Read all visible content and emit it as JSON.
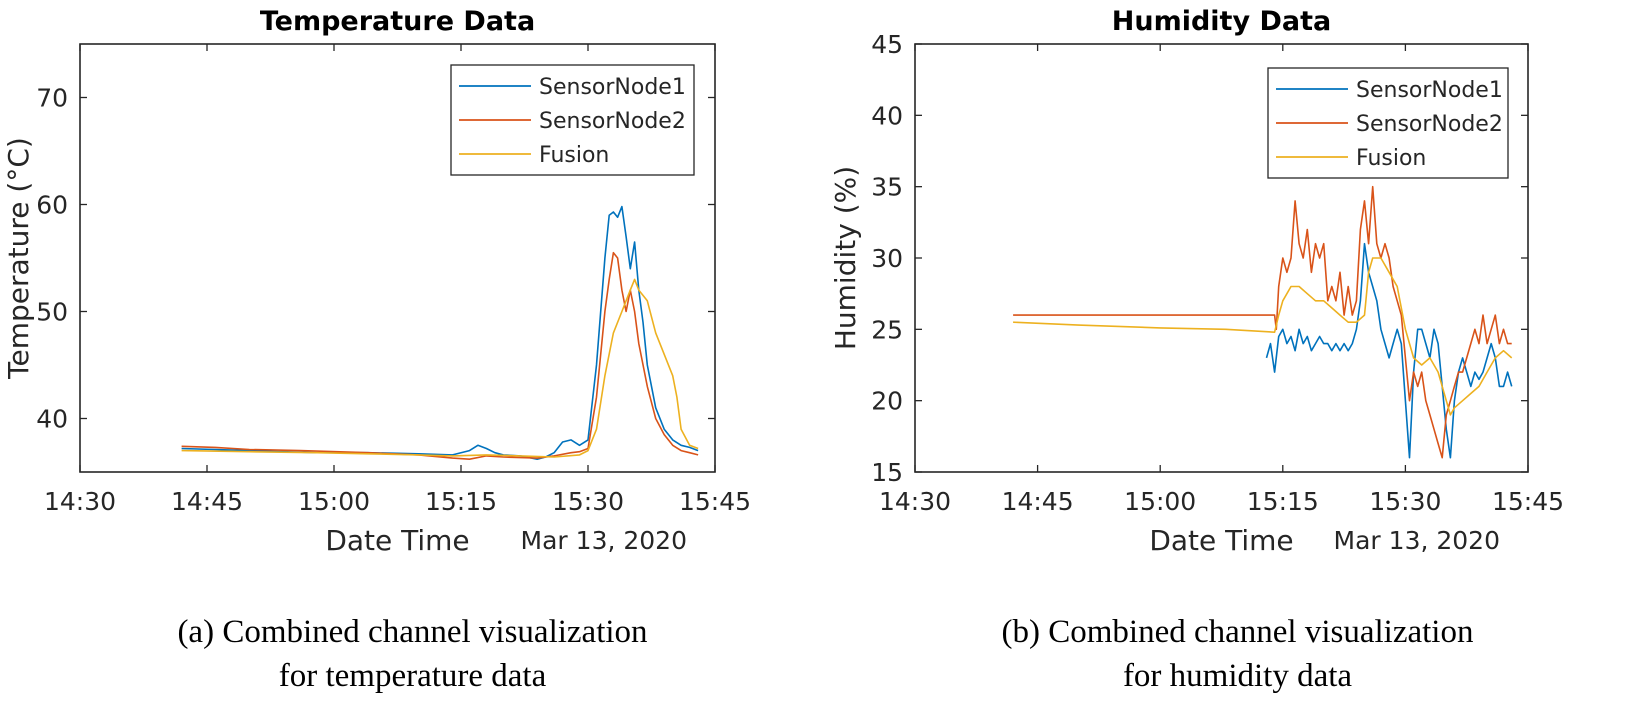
{
  "chart_data": [
    {
      "type": "line",
      "title": "Temperature Data",
      "xlabel": "Date Time",
      "ylabel": "Temperature (°C)",
      "date_label": "Mar 13, 2020",
      "x_unit": "minutes from 14:30",
      "xlim": [
        0,
        75
      ],
      "ylim": [
        35,
        75
      ],
      "xticks": [
        0,
        15,
        30,
        45,
        60,
        75
      ],
      "xtick_labels": [
        "14:30",
        "14:45",
        "15:00",
        "15:15",
        "15:30",
        "15:45"
      ],
      "yticks": [
        40,
        50,
        60,
        70
      ],
      "ytick_labels": [
        "40",
        "50",
        "60",
        "70"
      ],
      "legend": [
        "SensorNode1",
        "SensorNode2",
        "Fusion"
      ],
      "legend_position": "top-right",
      "colors": [
        "#0072BD",
        "#D95319",
        "#EDB120"
      ],
      "series": [
        {
          "name": "SensorNode1",
          "color": "#0072BD",
          "x": [
            12,
            20,
            28,
            34,
            40,
            44,
            46,
            47,
            48,
            49,
            50,
            52,
            54,
            55,
            56,
            57,
            58,
            59,
            60,
            61,
            62,
            62.5,
            63,
            63.5,
            64,
            64.5,
            65,
            65.5,
            66,
            66.5,
            67,
            68,
            69,
            70,
            71,
            72,
            73
          ],
          "y": [
            37.2,
            37.0,
            36.8,
            36.8,
            36.7,
            36.6,
            37.0,
            37.5,
            37.2,
            36.8,
            36.6,
            36.5,
            36.2,
            36.4,
            36.8,
            37.8,
            38.0,
            37.5,
            38.0,
            45.0,
            55.0,
            59.0,
            59.3,
            58.8,
            59.8,
            57.0,
            54.0,
            56.5,
            52.0,
            49.0,
            45.0,
            41.0,
            39.0,
            38.0,
            37.5,
            37.3,
            37.0
          ]
        },
        {
          "name": "SensorNode2",
          "color": "#D95319",
          "x": [
            12,
            16,
            20,
            26,
            34,
            40,
            44,
            46,
            48,
            50,
            54,
            56,
            58,
            59,
            60,
            61,
            61.5,
            62,
            62.5,
            63,
            63.5,
            64,
            64.5,
            65,
            65.5,
            66,
            67,
            68,
            69,
            70,
            71,
            72,
            73
          ],
          "y": [
            37.4,
            37.3,
            37.1,
            37.0,
            36.8,
            36.6,
            36.3,
            36.2,
            36.5,
            36.4,
            36.3,
            36.5,
            36.8,
            36.9,
            37.2,
            42.0,
            46.0,
            50.0,
            53.0,
            55.5,
            55.0,
            52.0,
            50.0,
            52.0,
            50.0,
            47.0,
            43.0,
            40.0,
            38.5,
            37.5,
            37.0,
            36.8,
            36.6
          ]
        },
        {
          "name": "Fusion",
          "color": "#EDB120",
          "x": [
            12,
            20,
            28,
            34,
            40,
            44,
            48,
            52,
            56,
            59,
            60,
            61,
            62,
            63,
            64,
            65,
            65.5,
            66,
            67,
            68,
            69,
            70,
            70.5,
            71,
            72,
            73
          ],
          "y": [
            37.0,
            36.9,
            36.8,
            36.7,
            36.6,
            36.5,
            36.6,
            36.5,
            36.4,
            36.6,
            37.0,
            39.0,
            44.0,
            48.0,
            50.0,
            52.0,
            53.0,
            52.0,
            51.0,
            48.0,
            46.0,
            44.0,
            42.0,
            39.0,
            37.5,
            37.2
          ]
        }
      ]
    },
    {
      "type": "line",
      "title": "Humidity Data",
      "xlabel": "Date Time",
      "ylabel": "Humidity (%)",
      "date_label": "Mar 13, 2020",
      "x_unit": "minutes from 14:30",
      "xlim": [
        0,
        75
      ],
      "ylim": [
        15,
        45
      ],
      "xticks": [
        0,
        15,
        30,
        45,
        60,
        75
      ],
      "xtick_labels": [
        "14:30",
        "14:45",
        "15:00",
        "15:15",
        "15:30",
        "15:45"
      ],
      "yticks": [
        15,
        20,
        25,
        30,
        35,
        40,
        45
      ],
      "ytick_labels": [
        "15",
        "20",
        "25",
        "30",
        "35",
        "40",
        "45"
      ],
      "legend": [
        "SensorNode1",
        "SensorNode2",
        "Fusion"
      ],
      "legend_position": "top-right",
      "colors": [
        "#0072BD",
        "#D95319",
        "#EDB120"
      ],
      "series": [
        {
          "name": "SensorNode1",
          "color": "#0072BD",
          "x": [
            43,
            43.5,
            44,
            44.5,
            45,
            45.5,
            46,
            46.5,
            47,
            47.5,
            48,
            48.5,
            49,
            49.5,
            50,
            50.5,
            51,
            51.5,
            52,
            52.5,
            53,
            53.5,
            54,
            54.5,
            55,
            55.5,
            56,
            56.5,
            57,
            57.5,
            58,
            58.5,
            59,
            59.5,
            60,
            60.5,
            61,
            61.5,
            62,
            62.5,
            63,
            63.5,
            64,
            64.5,
            65,
            65.5,
            66,
            66.5,
            67,
            67.5,
            68,
            68.5,
            69,
            69.5,
            70,
            70.5,
            71,
            71.5,
            72,
            72.5,
            73
          ],
          "y": [
            23.0,
            24.0,
            22.0,
            24.5,
            25.0,
            24.0,
            24.5,
            23.5,
            25.0,
            24.0,
            24.5,
            23.5,
            24.0,
            24.5,
            24.0,
            24.0,
            23.5,
            24.0,
            23.5,
            24.0,
            23.5,
            24.0,
            25.0,
            27.0,
            31.0,
            29.0,
            28.0,
            27.0,
            25.0,
            24.0,
            23.0,
            24.0,
            25.0,
            24.0,
            20.0,
            16.0,
            22.0,
            25.0,
            25.0,
            24.0,
            23.0,
            25.0,
            24.0,
            21.0,
            18.0,
            16.0,
            20.0,
            22.0,
            23.0,
            22.0,
            21.0,
            22.0,
            21.5,
            22.0,
            23.0,
            24.0,
            23.0,
            21.0,
            21.0,
            22.0,
            21.0
          ]
        },
        {
          "name": "SensorNode2",
          "color": "#D95319",
          "x": [
            12,
            20,
            30,
            38,
            44,
            44.2,
            44.5,
            45,
            45.5,
            46,
            46.5,
            47,
            47.5,
            48,
            48.5,
            49,
            49.5,
            50,
            50.5,
            51,
            51.5,
            52,
            52.5,
            53,
            53.5,
            54,
            54.5,
            55,
            55.5,
            56,
            56.5,
            57,
            57.5,
            58,
            58.5,
            59,
            59.5,
            60,
            60.5,
            61,
            61.5,
            62,
            62.5,
            63,
            63.5,
            64,
            64.5,
            65,
            65.5,
            66,
            66.5,
            67,
            67.5,
            68,
            68.5,
            69,
            69.5,
            70,
            70.5,
            71,
            71.5,
            72,
            72.5,
            73
          ],
          "y": [
            26.0,
            26.0,
            26.0,
            26.0,
            26.0,
            25.0,
            28.0,
            30.0,
            29.0,
            30.0,
            34.0,
            31.0,
            30.0,
            32.0,
            29.0,
            31.0,
            30.0,
            31.0,
            27.0,
            28.0,
            27.0,
            29.0,
            26.0,
            28.0,
            26.0,
            27.0,
            32.0,
            34.0,
            31.0,
            35.0,
            31.0,
            30.0,
            31.0,
            30.0,
            28.0,
            27.0,
            26.0,
            23.0,
            20.0,
            22.0,
            21.0,
            22.0,
            20.0,
            19.0,
            18.0,
            17.0,
            16.0,
            19.0,
            20.0,
            21.0,
            22.0,
            22.0,
            23.0,
            24.0,
            25.0,
            24.0,
            26.0,
            24.0,
            25.0,
            26.0,
            24.0,
            25.0,
            24.0,
            24.0
          ]
        },
        {
          "name": "Fusion",
          "color": "#EDB120",
          "x": [
            12,
            20,
            30,
            38,
            44,
            44.5,
            45,
            46,
            47,
            48,
            49,
            50,
            51,
            52,
            53,
            54,
            55,
            55.5,
            56,
            57,
            58,
            59,
            60,
            61,
            62,
            63,
            64,
            65,
            65.5,
            66,
            67,
            68,
            69,
            70,
            71,
            72,
            73
          ],
          "y": [
            25.5,
            25.3,
            25.1,
            25.0,
            24.8,
            26.0,
            27.0,
            28.0,
            28.0,
            27.5,
            27.0,
            27.0,
            26.5,
            26.0,
            25.5,
            25.5,
            26.0,
            29.0,
            30.0,
            30.0,
            29.0,
            28.0,
            25.0,
            23.0,
            22.5,
            23.0,
            22.0,
            20.0,
            19.0,
            19.5,
            20.0,
            20.5,
            21.0,
            22.0,
            23.0,
            23.5,
            23.0
          ]
        }
      ]
    }
  ],
  "captions": [
    {
      "line1": "(a) Combined channel visualization",
      "line2": "for temperature data"
    },
    {
      "line1": "(b) Combined channel visualization",
      "line2": "for humidity data"
    }
  ]
}
